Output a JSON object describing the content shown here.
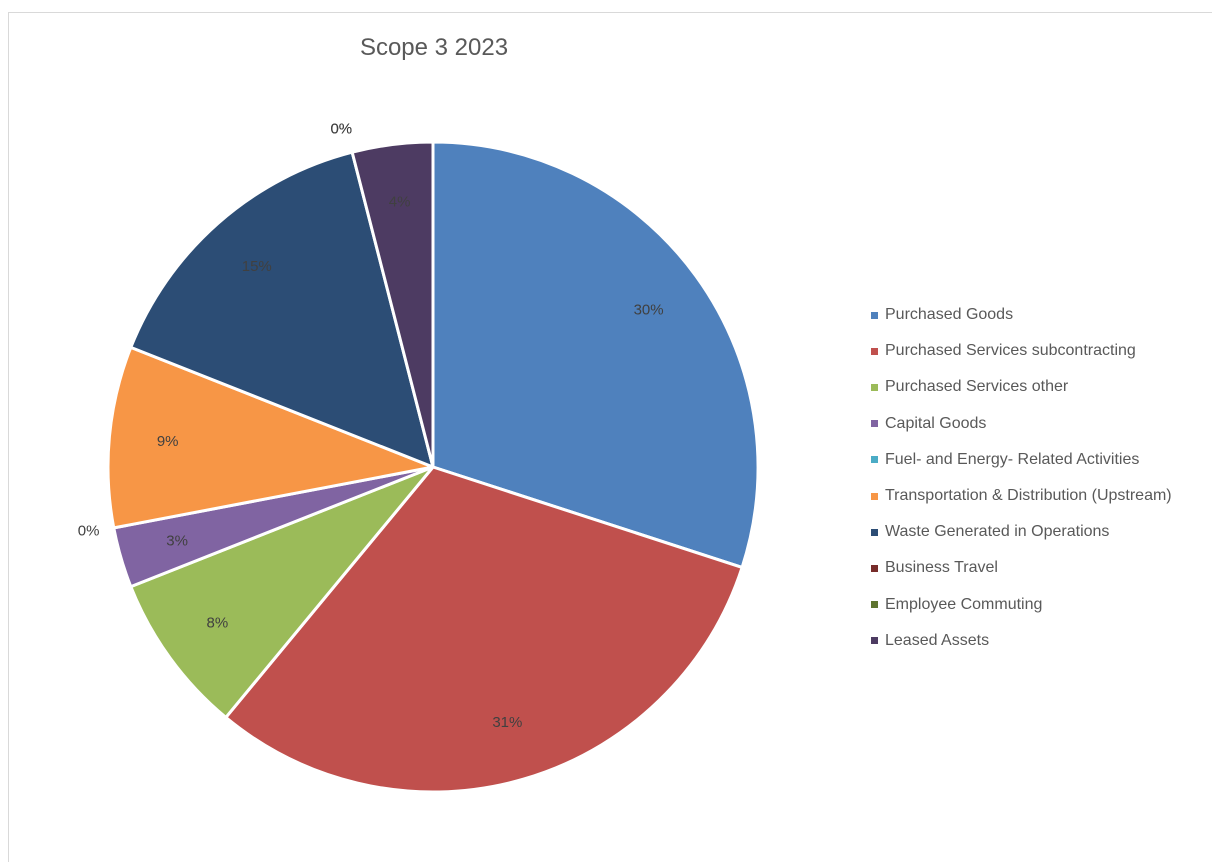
{
  "chart_data": {
    "type": "pie",
    "title": "Scope 3 2023",
    "categories": [
      "Purchased Goods",
      "Purchased Services subcontracting",
      "Purchased Services other",
      "Capital Goods",
      "Fuel- and Energy- Related Activities",
      "Transportation & Distribution (Upstream)",
      "Waste Generated in Operations",
      "Business Travel",
      "Employee Commuting",
      "Leased Assets"
    ],
    "values": [
      30,
      31,
      8,
      3,
      0,
      9,
      15,
      0,
      0,
      4
    ],
    "data_labels": [
      "30%",
      "31%",
      "8%",
      "3%",
      "0%",
      "9%",
      "15%",
      "0%",
      "0%",
      "4%"
    ],
    "colors": [
      "#4f81bd",
      "#c0504d",
      "#9bbb59",
      "#8064a2",
      "#4bacc6",
      "#f79646",
      "#2c4d75",
      "#772c2a",
      "#5f7530",
      "#4d3b62"
    ],
    "legend_position": "right"
  }
}
